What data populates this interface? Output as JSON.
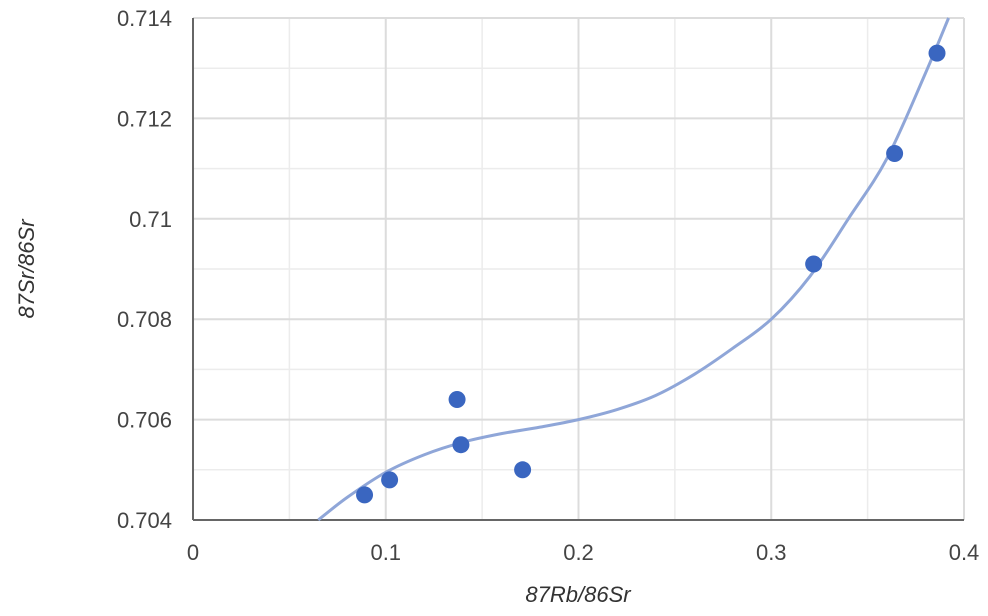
{
  "chart_data": {
    "type": "scatter",
    "xlabel": "87Rb/86Sr",
    "ylabel": "87Sr/86Sr",
    "xlim": [
      0,
      0.4
    ],
    "ylim": [
      0.704,
      0.714
    ],
    "x_ticks": [
      "0",
      "0.1",
      "0.2",
      "0.3",
      "0.4"
    ],
    "y_ticks": [
      "0.704",
      "0.706",
      "0.708",
      "0.71",
      "0.712",
      "0.714"
    ],
    "x_tick_values": [
      0,
      0.1,
      0.2,
      0.3,
      0.4
    ],
    "y_tick_values": [
      0.704,
      0.706,
      0.708,
      0.71,
      0.712,
      0.714
    ],
    "x_minor_values": [
      0.05,
      0.15,
      0.25,
      0.35
    ],
    "y_minor_values": [
      0.705,
      0.707,
      0.709,
      0.711,
      0.713
    ],
    "grid": true,
    "series": [
      {
        "points": [
          {
            "x": 0.089,
            "y": 0.7045
          },
          {
            "x": 0.102,
            "y": 0.7048
          },
          {
            "x": 0.137,
            "y": 0.7064
          },
          {
            "x": 0.139,
            "y": 0.7055
          },
          {
            "x": 0.171,
            "y": 0.705
          },
          {
            "x": 0.322,
            "y": 0.7091
          },
          {
            "x": 0.364,
            "y": 0.7113
          },
          {
            "x": 0.386,
            "y": 0.7133
          }
        ]
      }
    ],
    "trendline": {
      "type": "polynomial",
      "x": [
        0.065,
        0.08,
        0.1,
        0.12,
        0.14,
        0.16,
        0.18,
        0.2,
        0.22,
        0.24,
        0.26,
        0.28,
        0.3,
        0.32,
        0.34,
        0.36,
        0.38,
        0.392
      ],
      "y": [
        0.704,
        0.70445,
        0.70495,
        0.7053,
        0.70555,
        0.70572,
        0.70585,
        0.706,
        0.7062,
        0.70648,
        0.7069,
        0.70742,
        0.708,
        0.70885,
        0.71,
        0.7112,
        0.7129,
        0.714
      ]
    },
    "colors": {
      "points": "#3a66c0",
      "trendline": "#8fa6d8",
      "grid": "#dcdcdc",
      "axis": "#666666"
    }
  }
}
